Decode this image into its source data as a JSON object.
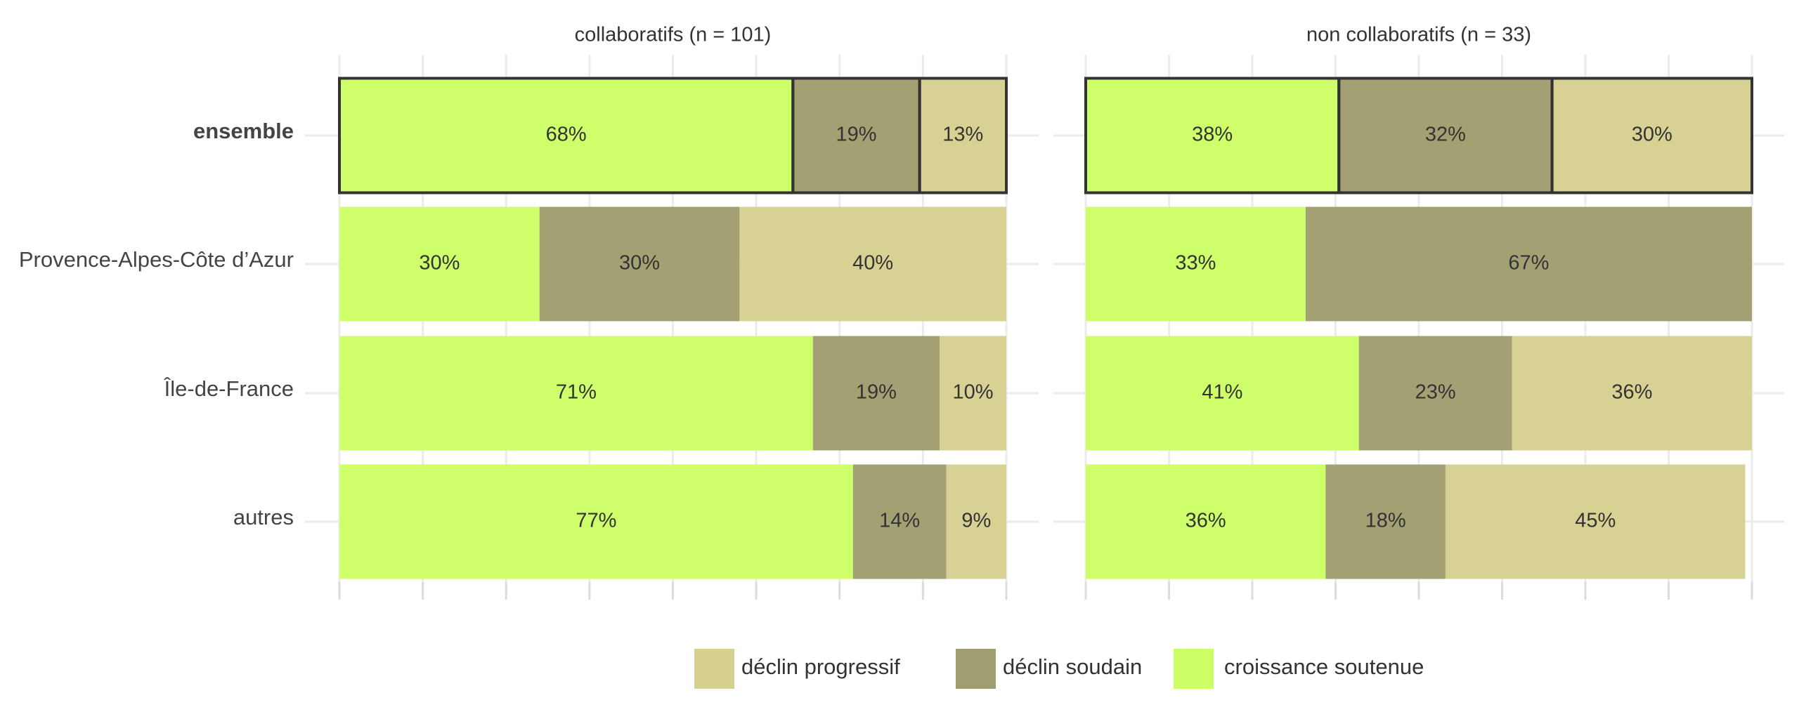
{
  "chart_data": {
    "type": "bar",
    "orientation": "horizontal",
    "stacked": true,
    "categories": [
      "ensemble",
      "Provence-Alpes-Côte  d’Azur",
      "Île-de-France",
      "autres"
    ],
    "series": [
      {
        "name": "croissance soutenue",
        "color": "#ccff66"
      },
      {
        "name": "déclin soudain",
        "color": "#a09e70"
      },
      {
        "name": "déclin progressif",
        "color": "#d6d191"
      }
    ],
    "xlim": [
      0,
      100
    ],
    "xticks": [
      0,
      12.5,
      25,
      37.5,
      50,
      62.5,
      75,
      87.5,
      100
    ],
    "grid": true,
    "panels": [
      {
        "title": "collaboratifs (n = 101)",
        "series": [
          {
            "values": [
              68,
              30,
              71,
              77
            ],
            "value_labels": [
              "68%",
              "30%",
              "71%",
              "77%"
            ]
          },
          {
            "values": [
              19,
              30,
              19,
              14
            ],
            "value_labels": [
              "19%",
              "30%",
              "19%",
              "14%"
            ]
          },
          {
            "values": [
              13,
              40,
              10,
              9
            ],
            "value_labels": [
              "13%",
              "40%",
              "10%",
              "9%"
            ]
          }
        ]
      },
      {
        "title": "non collaboratifs (n = 33)",
        "series": [
          {
            "values": [
              38,
              33,
              41,
              36
            ],
            "value_labels": [
              "38%",
              "33%",
              "41%",
              "36%"
            ]
          },
          {
            "values": [
              32,
              67,
              23,
              18
            ],
            "value_labels": [
              "32%",
              "67%",
              "23%",
              "18%"
            ]
          },
          {
            "values": [
              30,
              null,
              36,
              45
            ],
            "value_labels": [
              "30%",
              null,
              "36%",
              "45%"
            ]
          }
        ]
      }
    ]
  }
}
